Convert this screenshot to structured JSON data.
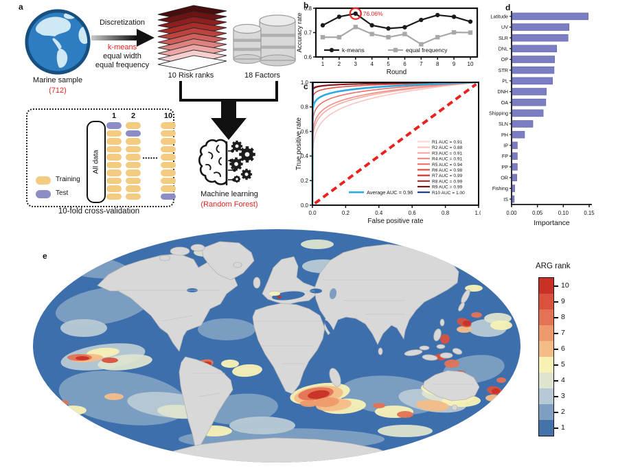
{
  "panels": {
    "a": "a",
    "b": "b",
    "c": "c",
    "d": "d",
    "e": "e"
  },
  "panel_a": {
    "marine_sample_label": "Marine sample",
    "marine_sample_count": "(712)",
    "discretization_label": "Discretization",
    "kmeans_label": "k-means",
    "equal_width_label": "equal width",
    "equal_frequency_label": "equal frequency",
    "risk_ranks_label": "10 Risk ranks",
    "factors_label": "18 Factors",
    "all_data_label": "All data",
    "training_label": "Training",
    "test_label": "Test",
    "fold_dots": "••••••",
    "cv_caption": "10-fold cross-validation",
    "ml_label": "Machine learning",
    "ml_sublabel": "(Random Forest)",
    "fold_columns": [
      {
        "label": "1",
        "test_index": 0
      },
      {
        "label": "2",
        "test_index": 1
      },
      {
        "label": "10",
        "test_index": 9
      }
    ],
    "pills_per_fold": 10,
    "colors": {
      "training": "#f3cb81",
      "test": "#8d8dc5",
      "accent_red": "#e8231f",
      "risk_stack": [
        "#4a0d0d",
        "#6b1414",
        "#8c1f1f",
        "#a52e2b",
        "#bc4440",
        "#cd605c",
        "#dd827f",
        "#eaa7a5",
        "#f5cfce",
        "#ffffff"
      ]
    }
  },
  "chart_data": [
    {
      "id": "accuracy",
      "type": "line",
      "xlabel": "Round",
      "ylabel": "Accuracy rate",
      "x": [
        1,
        2,
        3,
        4,
        5,
        6,
        7,
        8,
        9,
        10
      ],
      "ylim": [
        0.6,
        0.8
      ],
      "yticks": [
        "0.6",
        "0.7",
        "0.8"
      ],
      "series": [
        {
          "name": "k-means",
          "color": "#1a1a1a",
          "marker": "circle",
          "values": [
            0.73,
            0.765,
            0.778,
            0.73,
            0.717,
            0.722,
            0.752,
            0.772,
            0.765,
            0.745
          ]
        },
        {
          "name": "equal frequency",
          "color": "#a8a8a8",
          "marker": "square",
          "values": [
            0.681,
            0.681,
            0.723,
            0.694,
            0.681,
            0.694,
            0.652,
            0.681,
            0.701,
            0.7
          ]
        }
      ],
      "annotation": {
        "text": "76.06%",
        "round": 3,
        "series": "k-means",
        "color": "#e8231f"
      }
    },
    {
      "id": "roc",
      "type": "line",
      "xlabel": "False positive rate",
      "ylabel": "True positive rate",
      "xticks": [
        "0.0",
        "0.2",
        "0.4",
        "0.6",
        "0.8",
        "1.0"
      ],
      "yticks": [
        "0.0",
        "0.2",
        "0.4",
        "0.6",
        "0.8",
        "1.0"
      ],
      "diagonal_color": "#e8231f",
      "legend_suffix": " AUC = ",
      "curves": [
        {
          "name": "R1",
          "auc": 0.91,
          "auc_label": "0.91",
          "color": "#fbdad6"
        },
        {
          "name": "R2",
          "auc": 0.88,
          "auc_label": "0.88",
          "color": "#f9c4bd"
        },
        {
          "name": "R3",
          "auc": 0.91,
          "auc_label": "0.91",
          "color": "#f7aaa1"
        },
        {
          "name": "R4",
          "auc": 0.91,
          "auc_label": "0.91",
          "color": "#f28e85"
        },
        {
          "name": "R5",
          "auc": 0.94,
          "auc_label": "0.94",
          "color": "#ed6f66"
        },
        {
          "name": "R6",
          "auc": 0.98,
          "auc_label": "0.98",
          "color": "#e44f47"
        },
        {
          "name": "R7",
          "auc": 0.99,
          "auc_label": "0.99",
          "color": "#d4332c"
        },
        {
          "name": "R8",
          "auc": 0.99,
          "auc_label": "0.99",
          "color": "#b22220"
        },
        {
          "name": "R9",
          "auc": 0.99,
          "auc_label": "0.99",
          "color": "#7c1113"
        },
        {
          "name": "R10",
          "auc": 1.0,
          "auc_label": "1.00",
          "color": "#1d2f7e"
        }
      ],
      "average": {
        "name": "Average",
        "auc": 0.96,
        "label": "Average AUC = 0.96",
        "color": "#2da9e1"
      }
    },
    {
      "id": "importance",
      "type": "bar",
      "orientation": "horizontal",
      "xlabel": "Importance",
      "xlim": [
        0,
        0.15
      ],
      "xticks": [
        "0.00",
        "0.05",
        "0.10",
        "0.15"
      ],
      "categories": [
        "Latitude",
        "UV",
        "SLR",
        "DNL",
        "OP",
        "STR",
        "PL",
        "DNH",
        "OA",
        "Shipping",
        "SLN",
        "PH",
        "IP",
        "FP",
        "PP",
        "OR",
        "Fishing",
        "IS"
      ],
      "values": [
        0.147,
        0.11,
        0.108,
        0.086,
        0.082,
        0.081,
        0.078,
        0.066,
        0.065,
        0.06,
        0.04,
        0.024,
        0.01,
        0.01,
        0.01,
        0.009,
        0.005,
        0.004
      ],
      "bar_color": "#7b7ec2"
    }
  ],
  "map": {
    "legend_title": "ARG rank",
    "ranks": [
      10,
      9,
      8,
      7,
      6,
      5,
      4,
      3,
      2,
      1
    ],
    "rank_colors": {
      "1": "#4473a9",
      "2": "#7e9fc2",
      "3": "#b7c9d4",
      "4": "#dde4cf",
      "5": "#f8f1b5",
      "6": "#f4bd87",
      "7": "#ee9a6c",
      "8": "#e37354",
      "9": "#d8523e",
      "10": "#c93127"
    },
    "ocean_color": "#3e6fad",
    "land_color": "#d8d8d8",
    "land_border": "#b2b2b2"
  }
}
